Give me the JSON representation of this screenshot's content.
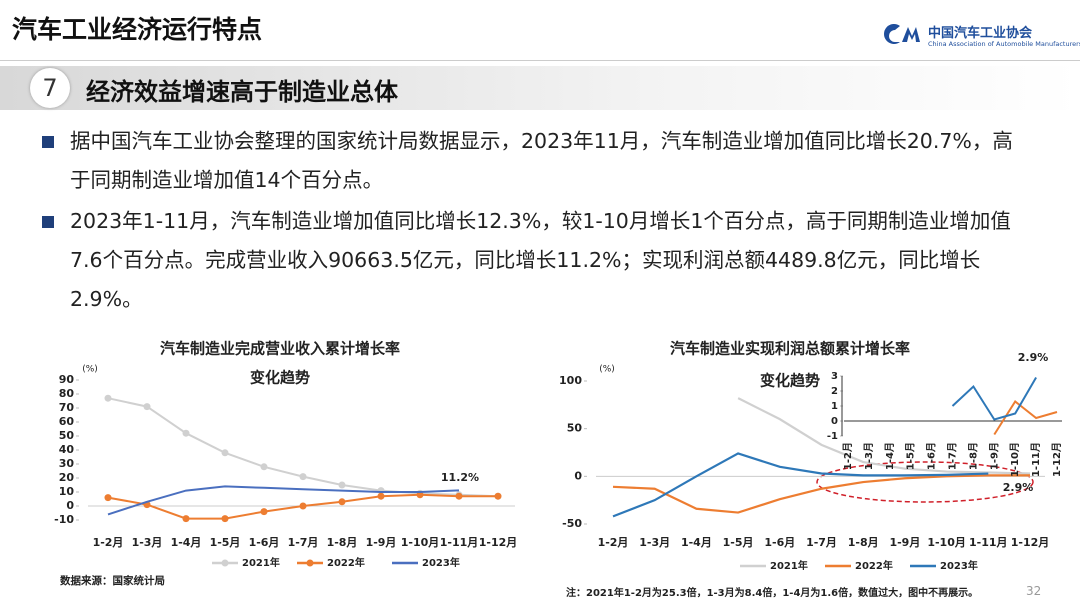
{
  "header": {
    "title": "汽车工业经济运行特点",
    "logo_cn": "中国汽车工业协会",
    "logo_en": "China Association of Automobile Manufacturers"
  },
  "section": {
    "number": "7",
    "title": "经济效益增速高于制造业总体"
  },
  "bullets": [
    "据中国汽车工业协会整理的国家统计局数据显示，2023年11月，汽车制造业增加值同比增长20.7%，高于同期制造业增加值14个百分点。",
    "2023年1-11月，汽车制造业增加值同比增长12.3%，较1-10月增长1个百分点，高于同期制造业增加值7.6个百分点。完成营业收入90663.5亿元，同比增长11.2%；实现利润总额4489.8亿元，同比增长2.9%。"
  ],
  "chart_data": [
    {
      "type": "line",
      "title_lines": [
        "汽车制造业完成营业收入累计增长率",
        "变化趋势"
      ],
      "y_label": "(%)",
      "categories": [
        "1-2月",
        "1-3月",
        "1-4月",
        "1-5月",
        "1-6月",
        "1-7月",
        "1-8月",
        "1-9月",
        "1-10月",
        "1-11月",
        "1-12月"
      ],
      "series": [
        {
          "name": "2021年",
          "color": "#d0d0d0",
          "markers": true,
          "values": [
            77,
            71,
            52,
            38,
            28,
            21,
            15,
            11,
            9,
            8,
            7
          ]
        },
        {
          "name": "2022年",
          "color": "#ed7d31",
          "markers": true,
          "values": [
            6,
            1,
            -9,
            -9,
            -4,
            0,
            3,
            7,
            8,
            7,
            7
          ]
        },
        {
          "name": "2023年",
          "color": "#4a6fbf",
          "markers": false,
          "values": [
            -6,
            3,
            11,
            14,
            13,
            12,
            11,
            10,
            10,
            11.2,
            null
          ]
        }
      ],
      "annotations": [
        {
          "text": "11.2%"
        }
      ],
      "ylim": [
        -10,
        90
      ],
      "yticks": [
        -10,
        0,
        10,
        20,
        30,
        40,
        50,
        60,
        70,
        80,
        90
      ]
    },
    {
      "type": "line",
      "title_lines": [
        "汽车制造业实现利润总额累计增长率",
        "变化趋势"
      ],
      "y_label": "(%)",
      "categories": [
        "1-2月",
        "1-3月",
        "1-4月",
        "1-5月",
        "1-6月",
        "1-7月",
        "1-8月",
        "1-9月",
        "1-10月",
        "1-11月",
        "1-12月"
      ],
      "series": [
        {
          "name": "2021年",
          "color": "#d0d0d0",
          "markers": false,
          "values": [
            null,
            null,
            null,
            82,
            60,
            33,
            15,
            8,
            5,
            4,
            3
          ]
        },
        {
          "name": "2022年",
          "color": "#ed7d31",
          "markers": false,
          "values": [
            -11,
            -13,
            -34,
            -38,
            -24,
            -13,
            -6,
            -2,
            0,
            1,
            1
          ]
        },
        {
          "name": "2023年",
          "color": "#2e78b8",
          "markers": false,
          "values": [
            -42,
            -25,
            0,
            24,
            10,
            3,
            1,
            1,
            1.5,
            2.9,
            null
          ]
        }
      ],
      "annotations": [
        {
          "text": "2.9%"
        }
      ],
      "ylim": [
        -50,
        100
      ],
      "yticks": [
        -50,
        0,
        50,
        100
      ]
    },
    {
      "type": "line",
      "categories": [
        "1-2月",
        "1-3月",
        "1-4月",
        "1-5月",
        "1-6月",
        "1-7月",
        "1-8月",
        "1-9月",
        "1-10月",
        "1-11月",
        "1-12月"
      ],
      "series": [
        {
          "color": "#ed7d31",
          "markers": false,
          "values": [
            null,
            null,
            null,
            null,
            null,
            null,
            null,
            -0.9,
            1.3,
            0.2,
            0.6
          ]
        },
        {
          "color": "#2e78b8",
          "markers": false,
          "values": [
            null,
            null,
            null,
            null,
            null,
            1,
            2.3,
            0.1,
            0.5,
            2.9,
            null
          ]
        }
      ],
      "annotations": [
        {
          "text": "2.9%"
        }
      ],
      "ylim": [
        -1,
        3
      ],
      "yticks": [
        -1,
        0,
        1,
        2,
        3
      ]
    }
  ],
  "source": "数据来源：国家统计局",
  "note": "注：2021年1-2月为25.3倍，1-3月为8.4倍，1-4月为1.6倍，数值过大，图中不再展示。",
  "page_number": "32"
}
